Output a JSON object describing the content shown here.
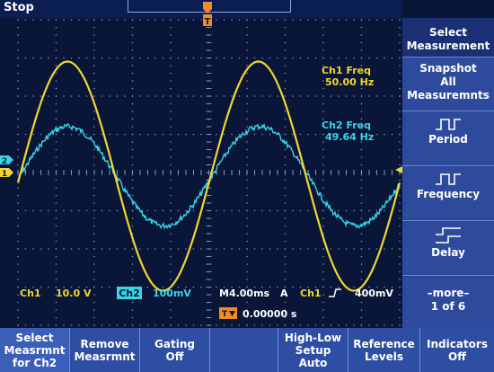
{
  "status": "Stop",
  "menu": {
    "select_measurement": "Select\nMeasurement",
    "snapshot": "Snapshot\nAll\nMeasuremnts",
    "period": "Period",
    "frequency": "Frequency",
    "delay": "Delay",
    "more": "–more–\n1 of 6"
  },
  "measurements": {
    "ch1_label": "Ch1 Freq",
    "ch1_value": "50.00 Hz",
    "ch2_label": "Ch2 Freq",
    "ch2_value": "49.64 Hz"
  },
  "settings": {
    "ch1_name": "Ch1",
    "ch1_scale": "10.0 V",
    "ch2_name": "Ch2",
    "ch2_scale": "100mV",
    "timebase": "M4.00ms",
    "trigger_mode": "A",
    "trigger_source": "Ch1",
    "trigger_level": "400mV",
    "trigger_position": "0.00000 s"
  },
  "markers": {
    "ch1": "1",
    "ch2": "2",
    "trigger_top": "T"
  },
  "bottom_buttons": [
    "Select\nMeasrmnt\nfor Ch2",
    "Remove\nMeasrmnt",
    "Gating\nOff",
    "",
    "High-Low\nSetup\nAuto",
    "Reference\nLevels",
    "Indicators\nOff"
  ],
  "colors": {
    "ch1": "#f1d632",
    "ch2": "#38d5e8",
    "grid": "#7c8dbb"
  },
  "chart_data": {
    "type": "line",
    "x_divisions": 10,
    "y_divisions": 8,
    "series": [
      {
        "name": "Ch1",
        "frequency_hz": 50.0,
        "amplitude_div": 3.0,
        "phase": "sine"
      },
      {
        "name": "Ch2",
        "frequency_hz": 49.64,
        "amplitude_div": 1.3,
        "phase": "sine",
        "noisy": true
      }
    ]
  }
}
